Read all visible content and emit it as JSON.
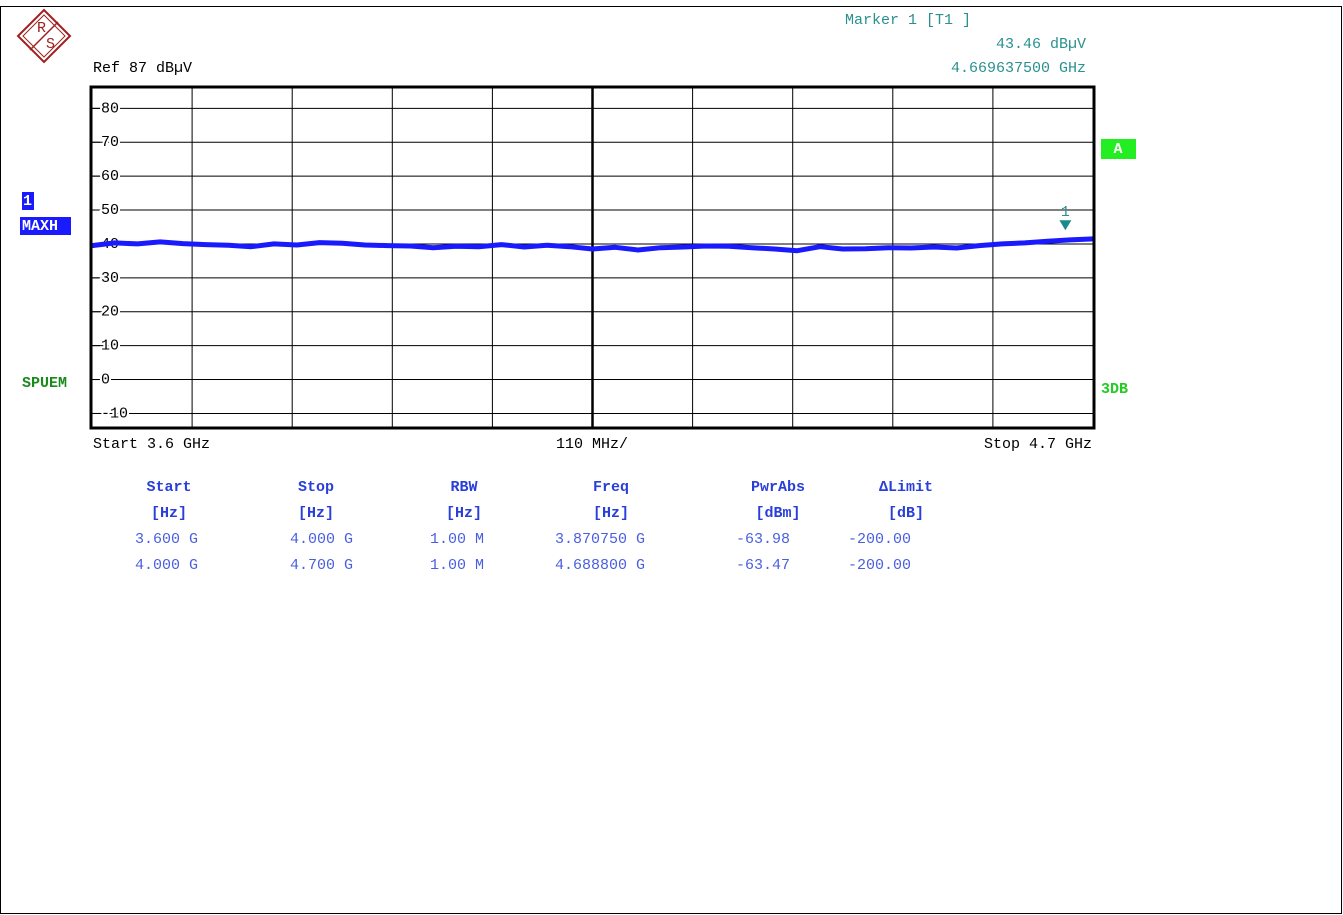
{
  "chart_data": {
    "type": "line",
    "ref_label": "Ref  87 dBµV",
    "marker": {
      "title": "Marker 1 [T1 ]",
      "value_label": "43.46 dBµV",
      "x_label": "4.669637500 GHz",
      "label": "1",
      "x": 4.6696375,
      "y": 43.46
    },
    "trace_labels": [
      "1",
      "MAXH"
    ],
    "mode_label": "SPUEM",
    "side_labels": [
      "A",
      "3DB"
    ],
    "x_start_label": "Start 3.6 GHz",
    "x_span_label": "110 MHz/",
    "x_stop_label": "Stop 4.7 GHz",
    "xlim": [
      3.6,
      4.7
    ],
    "ylim": [
      -14,
      86
    ],
    "yticks": [
      80,
      70,
      60,
      50,
      40,
      30,
      20,
      10,
      0,
      -10
    ],
    "grid": true,
    "series": [
      {
        "name": "1",
        "color": "#1a1aff",
        "x": [
          3.6,
          3.625,
          3.65,
          3.675,
          3.7,
          3.725,
          3.75,
          3.775,
          3.8,
          3.825,
          3.85,
          3.875,
          3.9,
          3.925,
          3.95,
          3.975,
          4.0,
          4.025,
          4.05,
          4.075,
          4.1,
          4.125,
          4.15,
          4.175,
          4.2,
          4.225,
          4.25,
          4.275,
          4.3,
          4.325,
          4.35,
          4.375,
          4.4,
          4.425,
          4.45,
          4.475,
          4.5,
          4.525,
          4.55,
          4.575,
          4.6,
          4.625,
          4.65,
          4.675,
          4.7
        ],
        "values": [
          39.5,
          40.3,
          40.0,
          40.6,
          40.1,
          39.8,
          39.6,
          39.2,
          40.0,
          39.7,
          40.4,
          40.2,
          39.7,
          39.5,
          39.4,
          38.9,
          39.3,
          39.2,
          39.8,
          39.1,
          39.6,
          39.2,
          38.5,
          39.0,
          38.2,
          38.9,
          39.1,
          39.4,
          39.3,
          38.9,
          38.5,
          38.0,
          39.2,
          38.5,
          38.6,
          38.9,
          38.8,
          39.1,
          38.8,
          39.5,
          40.0,
          40.3,
          40.8,
          41.2,
          41.5
        ]
      }
    ]
  },
  "table": {
    "headers": [
      [
        "Start",
        "[Hz]"
      ],
      [
        "Stop",
        "[Hz]"
      ],
      [
        "RBW",
        "[Hz]"
      ],
      [
        "Freq",
        "[Hz]"
      ],
      [
        "PwrAbs",
        "[dBm]"
      ],
      [
        "ΔLimit",
        "[dB]"
      ]
    ],
    "rows": [
      [
        "3.600 G",
        "4.000 G",
        "1.00 M",
        "3.870750 G",
        "-63.98",
        "-200.00"
      ],
      [
        "4.000 G",
        "4.700 G",
        "1.00 M",
        "4.688800 G",
        "-63.47",
        "-200.00"
      ]
    ]
  }
}
